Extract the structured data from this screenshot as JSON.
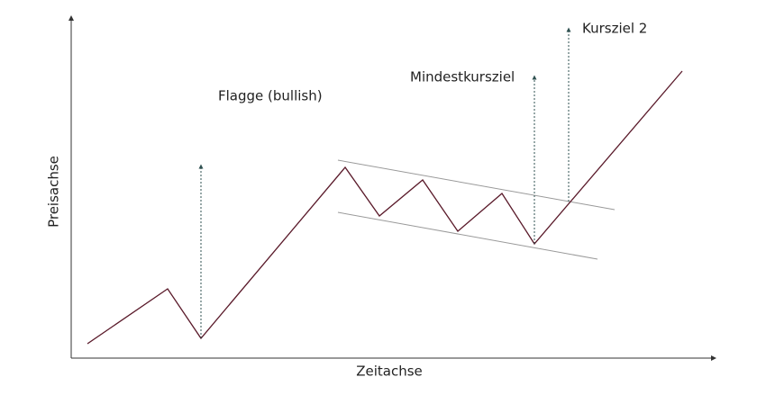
{
  "diagram": {
    "title": "Flagge (bullish)",
    "target_1": "Mindestkursziel",
    "target_2": "Kursziel 2",
    "x_axis_label": "Zeitachse",
    "y_axis_label": "Preisachse"
  }
}
